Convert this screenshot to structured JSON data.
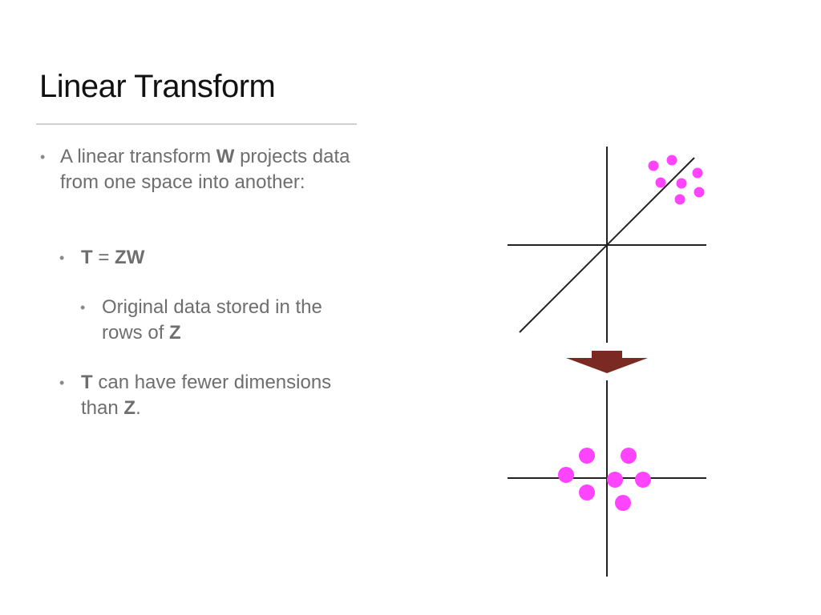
{
  "slide": {
    "title": "Linear Transform"
  },
  "bullets": [
    {
      "level": 1,
      "parts": [
        {
          "text": "A linear transform ",
          "bold": false
        },
        {
          "text": "W",
          "bold": true
        },
        {
          "text": " projects data from one space into another:",
          "bold": false
        }
      ]
    },
    {
      "level": 2,
      "parts": [
        {
          "text": "T",
          "bold": true
        },
        {
          "text": " = ",
          "bold": false
        },
        {
          "text": "ZW",
          "bold": true
        }
      ]
    },
    {
      "level": 3,
      "parts": [
        {
          "text": "Original data stored in the rows of ",
          "bold": false
        },
        {
          "text": "Z",
          "bold": true
        }
      ]
    },
    {
      "level": 2,
      "parts": [
        {
          "text": "T",
          "bold": true
        },
        {
          "text": " can have fewer dimensions than ",
          "bold": false
        },
        {
          "text": "Z",
          "bold": true
        },
        {
          "text": ".",
          "bold": false
        }
      ]
    }
  ],
  "diagram": {
    "axis_color": "#222222",
    "point_color": "#ff44ff",
    "arrow_color": "#7a2a22"
  }
}
